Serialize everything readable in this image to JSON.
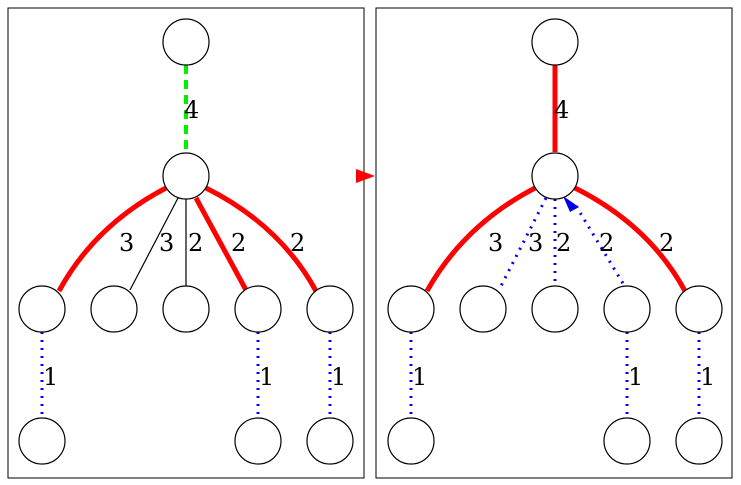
{
  "colors": {
    "red": "#ff0000",
    "green": "#00ee00",
    "blue": "#0000ee",
    "black": "#000000"
  },
  "left_panel": {
    "edges": [
      {
        "label": "4",
        "style": "green-dashed"
      },
      {
        "label": "3",
        "style": "red-thick"
      },
      {
        "label": "3",
        "style": "black-thin"
      },
      {
        "label": "2",
        "style": "black-thin"
      },
      {
        "label": "2",
        "style": "red-thick"
      },
      {
        "label": "2",
        "style": "red-thick"
      },
      {
        "label": "1",
        "style": "blue-dotted"
      },
      {
        "label": "1",
        "style": "blue-dotted"
      },
      {
        "label": "1",
        "style": "blue-dotted"
      }
    ]
  },
  "right_panel": {
    "edges": [
      {
        "label": "4",
        "style": "red-thick"
      },
      {
        "label": "3",
        "style": "red-thick"
      },
      {
        "label": "3",
        "style": "blue-dotted"
      },
      {
        "label": "2",
        "style": "blue-dotted"
      },
      {
        "label": "2",
        "style": "blue-dotted-arrow"
      },
      {
        "label": "2",
        "style": "red-thick"
      },
      {
        "label": "1",
        "style": "blue-dotted"
      },
      {
        "label": "1",
        "style": "blue-dotted"
      },
      {
        "label": "1",
        "style": "blue-dotted"
      }
    ]
  }
}
